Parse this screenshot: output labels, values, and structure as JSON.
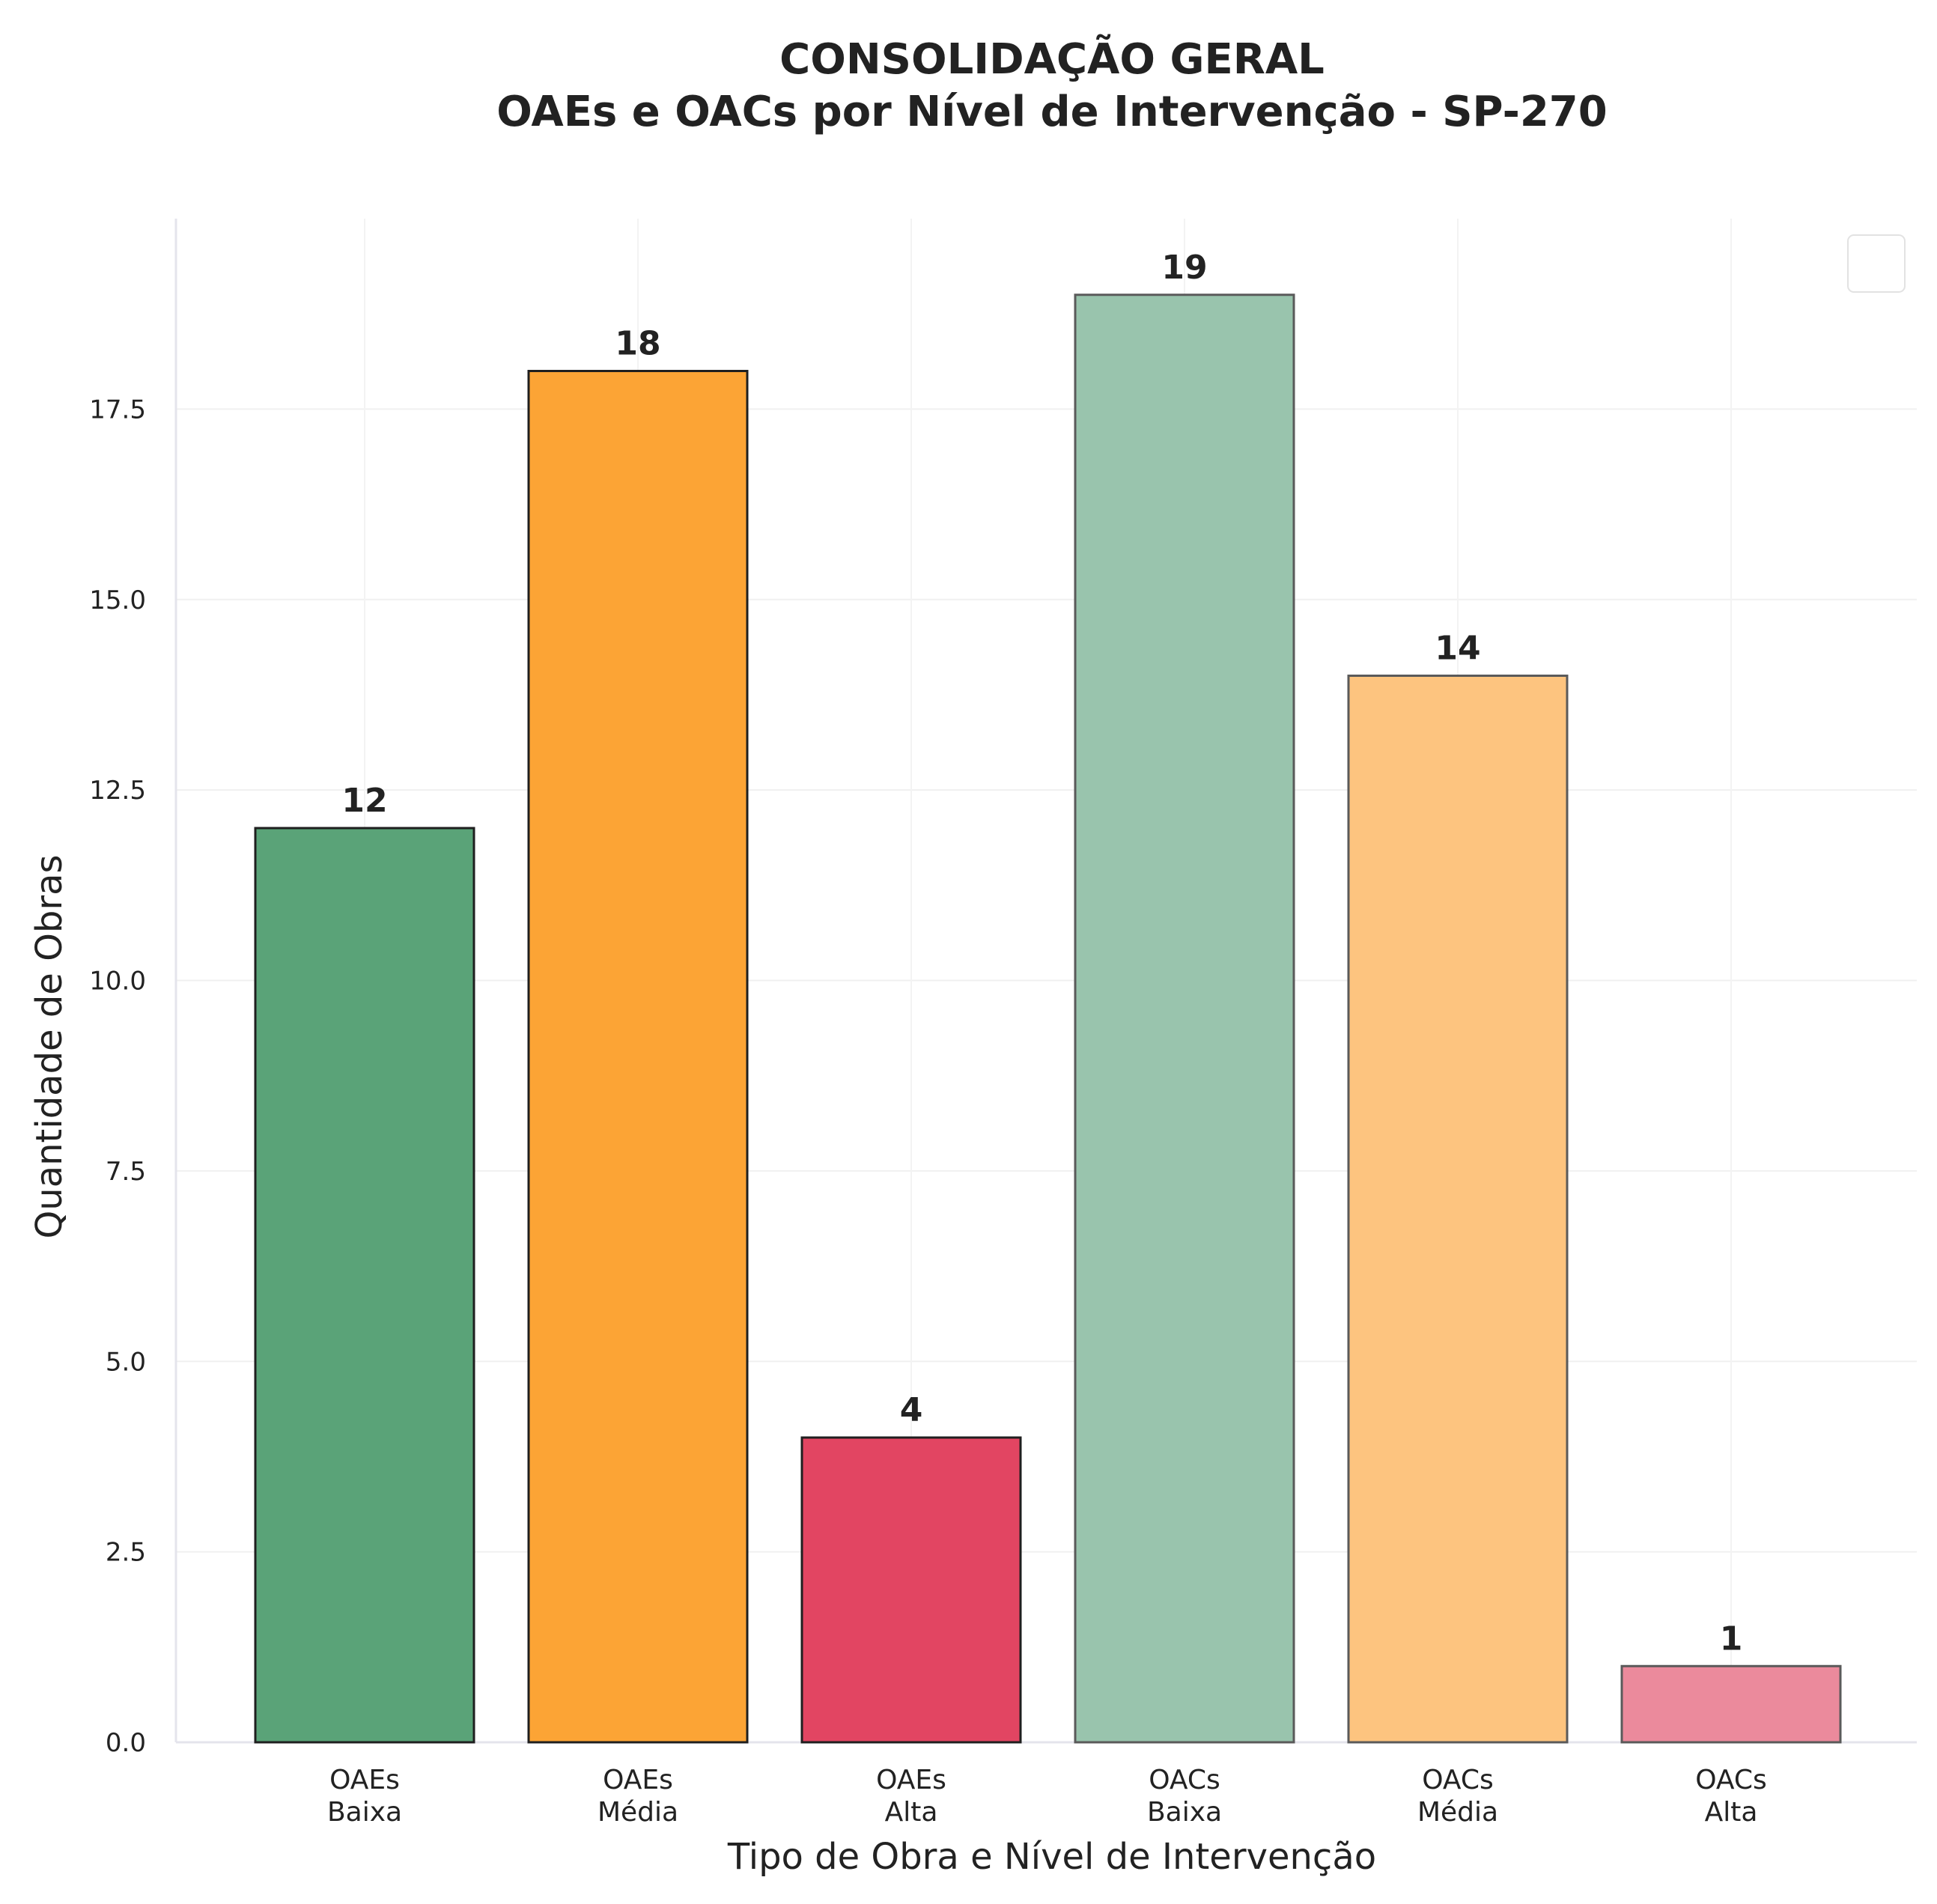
{
  "chart_data": {
    "type": "bar",
    "title": "CONSOLIDAÇÃO GERAL",
    "subtitle": "OAEs e OACs por Nível de Intervenção - SP-270",
    "xlabel": "Tipo de Obra e Nível de Intervenção",
    "ylabel": "Quantidade de Obras",
    "ylim": [
      0,
      20
    ],
    "yticks": [
      "0.0",
      "2.5",
      "5.0",
      "7.5",
      "10.0",
      "12.5",
      "15.0",
      "17.5"
    ],
    "categories": [
      [
        "OAEs",
        "Baixa"
      ],
      [
        "OAEs",
        "Média"
      ],
      [
        "OAEs",
        "Alta"
      ],
      [
        "OACs",
        "Baixa"
      ],
      [
        "OACs",
        "Média"
      ],
      [
        "OACs",
        "Alta"
      ]
    ],
    "values": [
      12,
      18,
      4,
      19,
      14,
      1
    ],
    "value_labels": [
      "12",
      "18",
      "4",
      "19",
      "14",
      "1"
    ],
    "colors": [
      "#5aa378",
      "#fca435",
      "#e24562",
      "#99c4ad",
      "#fdc47f",
      "#eb8a9c"
    ],
    "edge_colors": [
      "#1f1f1f",
      "#1f1f1f",
      "#1f1f1f",
      "#5a5a5a",
      "#5a5a5a",
      "#5a5a5a"
    ],
    "grid": true,
    "legend": "top-right (empty box)"
  }
}
